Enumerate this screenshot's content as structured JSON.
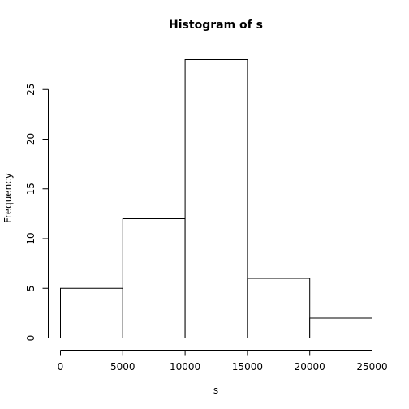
{
  "chart_data": {
    "type": "bar",
    "title": "Histogram of s",
    "xlabel": "s",
    "ylabel": "Frequency",
    "bins": [
      {
        "from": 0,
        "to": 5000,
        "count": 5
      },
      {
        "from": 5000,
        "to": 10000,
        "count": 12
      },
      {
        "from": 10000,
        "to": 15000,
        "count": 28
      },
      {
        "from": 15000,
        "to": 20000,
        "count": 6
      },
      {
        "from": 20000,
        "to": 25000,
        "count": 2
      }
    ],
    "xlim": [
      0,
      25000
    ],
    "ylim": [
      0,
      28
    ],
    "x_ticks": [
      0,
      5000,
      10000,
      15000,
      20000,
      25000
    ],
    "y_ticks": [
      0,
      5,
      10,
      15,
      20,
      25
    ],
    "grid": false,
    "legend": "none"
  }
}
